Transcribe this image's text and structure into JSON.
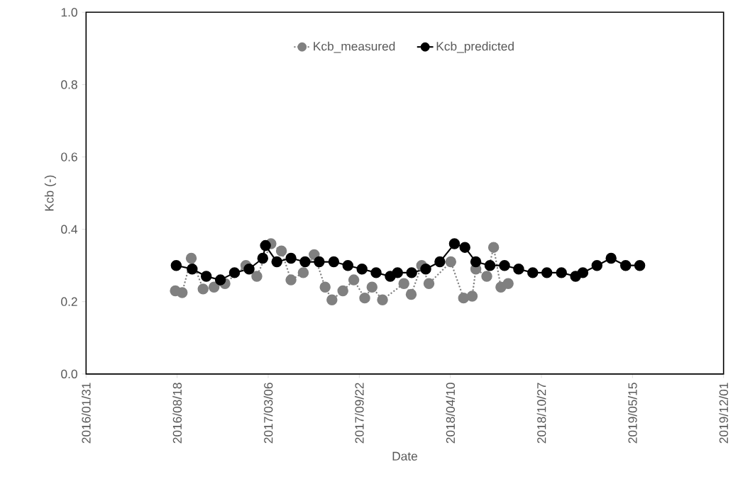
{
  "chart_data": {
    "type": "line",
    "xlabel": "Date",
    "ylabel": "Kcb (-)",
    "xlim": [
      "2016-01-31",
      "2019-12-01"
    ],
    "xticks": [
      {
        "value": "2016-01-31",
        "label": "2016/01/31"
      },
      {
        "value": "2016-08-18",
        "label": "2016/08/18"
      },
      {
        "value": "2017-03-06",
        "label": "2017/03/06"
      },
      {
        "value": "2017-09-22",
        "label": "2017/09/22"
      },
      {
        "value": "2018-04-10",
        "label": "2018/04/10"
      },
      {
        "value": "2018-10-27",
        "label": "2018/10/27"
      },
      {
        "value": "2019-05-15",
        "label": "2019/05/15"
      },
      {
        "value": "2019-12-01",
        "label": "2019/12/01"
      }
    ],
    "ylim": [
      0,
      1
    ],
    "yticks": [
      {
        "value": 0,
        "label": "0.0"
      },
      {
        "value": 0.2,
        "label": "0.2"
      },
      {
        "value": 0.4,
        "label": "0.4"
      },
      {
        "value": 0.6,
        "label": "0.6"
      },
      {
        "value": 0.8,
        "label": "0.8"
      },
      {
        "value": 1,
        "label": "1.0"
      }
    ],
    "grid": false,
    "legend": "top",
    "marker": "circle",
    "series": [
      {
        "name": "Kcb_measured",
        "color": "#808080",
        "line_style": "dotted",
        "x": [
          "2016-08-14",
          "2016-08-29",
          "2016-09-18",
          "2016-10-14",
          "2016-11-07",
          "2016-12-01",
          "2016-12-22",
          "2017-01-16",
          "2017-02-09",
          "2017-03-12",
          "2017-04-04",
          "2017-04-25",
          "2017-05-22",
          "2017-06-15",
          "2017-07-09",
          "2017-07-24",
          "2017-08-17",
          "2017-09-10",
          "2017-10-04",
          "2017-10-20",
          "2017-11-12",
          "2017-12-06",
          "2017-12-29",
          "2018-01-14",
          "2018-02-06",
          "2018-02-22",
          "2018-03-18",
          "2018-04-11",
          "2018-05-09",
          "2018-05-28",
          "2018-06-05",
          "2018-06-29",
          "2018-07-14",
          "2018-07-30",
          "2018-08-15"
        ],
        "values": [
          0.23,
          0.225,
          0.32,
          0.235,
          0.24,
          0.25,
          null,
          0.3,
          0.27,
          0.36,
          0.34,
          0.26,
          0.28,
          0.33,
          0.24,
          0.205,
          0.23,
          0.26,
          0.21,
          0.24,
          0.205,
          null,
          0.25,
          0.22,
          0.3,
          0.25,
          null,
          0.31,
          0.21,
          0.215,
          0.29,
          0.27,
          0.35,
          0.24,
          0.25
        ]
      },
      {
        "name": "Kcb_predicted",
        "color": "#000000",
        "line_style": "solid",
        "x": [
          "2016-08-16",
          "2016-09-20",
          "2016-10-21",
          "2016-11-21",
          "2016-12-22",
          "2017-01-23",
          "2017-02-22",
          "2017-02-28",
          "2017-03-25",
          "2017-04-25",
          "2017-05-26",
          "2017-06-26",
          "2017-07-28",
          "2017-08-28",
          "2017-09-28",
          "2017-10-29",
          "2017-11-29",
          "2017-12-15",
          "2018-01-15",
          "2018-02-15",
          "2018-03-18",
          "2018-04-19",
          "2018-05-12",
          "2018-06-05",
          "2018-07-06",
          "2018-08-07",
          "2018-09-07",
          "2018-10-08",
          "2018-11-08",
          "2018-12-10",
          "2019-01-10",
          "2019-01-26",
          "2019-02-26",
          "2019-03-29",
          "2019-04-30",
          "2019-05-31"
        ],
        "values": [
          0.3,
          0.29,
          0.27,
          0.26,
          0.28,
          0.29,
          0.32,
          0.355,
          0.31,
          0.32,
          0.31,
          0.31,
          0.31,
          0.3,
          0.29,
          0.28,
          0.27,
          0.28,
          0.28,
          0.29,
          0.31,
          0.36,
          0.35,
          0.31,
          0.3,
          0.3,
          0.29,
          0.28,
          0.28,
          0.28,
          0.27,
          0.28,
          0.3,
          0.32,
          0.3,
          0.3
        ]
      }
    ]
  }
}
